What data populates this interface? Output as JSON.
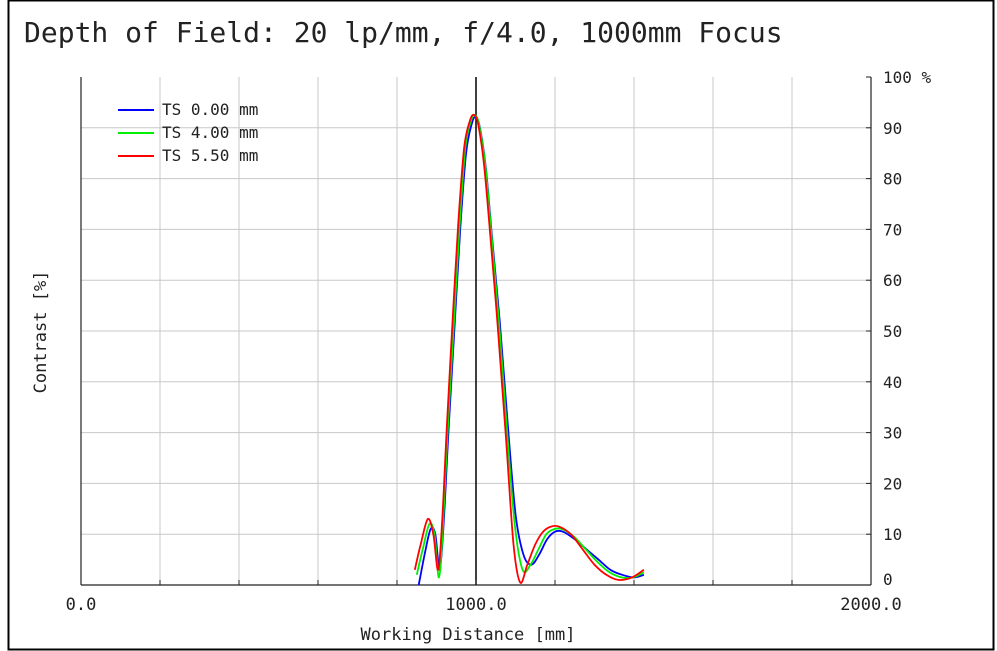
{
  "chart_data": {
    "type": "line",
    "title": "Depth of Field: 20 lp/mm, f/4.0, 1000mm Focus",
    "xlabel": "Working Distance [mm]",
    "ylabel": "Contrast [%]",
    "xlim": [
      0,
      2000
    ],
    "ylim": [
      0,
      100
    ],
    "x_tick_labels": [
      {
        "value": 0,
        "label": "0.0"
      },
      {
        "value": 1000,
        "label": "1000.0"
      },
      {
        "value": 2000,
        "label": "2000.0"
      }
    ],
    "y_tick_labels": [
      {
        "value": 0,
        "label": "0"
      },
      {
        "value": 10,
        "label": "10"
      },
      {
        "value": 20,
        "label": "20"
      },
      {
        "value": 30,
        "label": "30"
      },
      {
        "value": 40,
        "label": "40"
      },
      {
        "value": 50,
        "label": "50"
      },
      {
        "value": 60,
        "label": "60"
      },
      {
        "value": 70,
        "label": "70"
      },
      {
        "value": 80,
        "label": "80"
      },
      {
        "value": 90,
        "label": "90"
      },
      {
        "value": 100,
        "label": "100 %"
      }
    ],
    "x_grid_step": 200,
    "y_grid_step": 10,
    "grid": true,
    "focus_line_x": 1000,
    "legend_position": "top-left",
    "series": [
      {
        "name": "TS  0.00  mm",
        "color": "#0000ff",
        "x": [
          855,
          870,
          885,
          897,
          908,
          918,
          930,
          945,
          960,
          975,
          990,
          1000,
          1010,
          1025,
          1040,
          1060,
          1080,
          1100,
          1120,
          1140,
          1160,
          1180,
          1200,
          1220,
          1250,
          1280,
          1310,
          1340,
          1370,
          1400,
          1425
        ],
        "y": [
          0,
          6,
          11,
          10,
          3,
          12,
          30,
          50,
          70,
          85,
          91,
          92,
          90,
          82,
          69,
          52,
          32,
          14,
          6,
          4,
          6,
          9,
          10.5,
          10.5,
          9,
          7,
          5,
          3,
          2,
          1.5,
          2
        ]
      },
      {
        "name": "TS  4.00  mm",
        "color": "#00ee00",
        "x": [
          850,
          865,
          882,
          895,
          906,
          916,
          928,
          943,
          958,
          973,
          988,
          998,
          1008,
          1023,
          1038,
          1058,
          1078,
          1098,
          1118,
          1138,
          1158,
          1178,
          1198,
          1218,
          1248,
          1278,
          1308,
          1338,
          1368,
          1398,
          1425
        ],
        "y": [
          2,
          7,
          12,
          10,
          1.5,
          11,
          30,
          50,
          70,
          86,
          91.5,
          92.5,
          90.5,
          83,
          70,
          52,
          31,
          12,
          3,
          4,
          7,
          10,
          11,
          11,
          9.5,
          7,
          4.5,
          2.5,
          1.5,
          1.5,
          2.5
        ]
      },
      {
        "name": "TS  5.50  mm",
        "color": "#ff0000",
        "x": [
          845,
          860,
          878,
          892,
          904,
          914,
          926,
          940,
          955,
          970,
          985,
          996,
          1006,
          1020,
          1035,
          1055,
          1075,
          1095,
          1112,
          1130,
          1150,
          1170,
          1190,
          1210,
          1240,
          1270,
          1300,
          1330,
          1360,
          1395,
          1425
        ],
        "y": [
          3,
          8,
          13,
          10,
          3,
          12,
          31,
          51,
          71,
          86,
          91.5,
          92.5,
          90.5,
          83,
          70,
          51,
          30,
          8,
          0.5,
          4,
          8,
          10.5,
          11.5,
          11.5,
          10,
          7,
          4,
          2,
          1,
          1.5,
          3
        ]
      }
    ]
  }
}
